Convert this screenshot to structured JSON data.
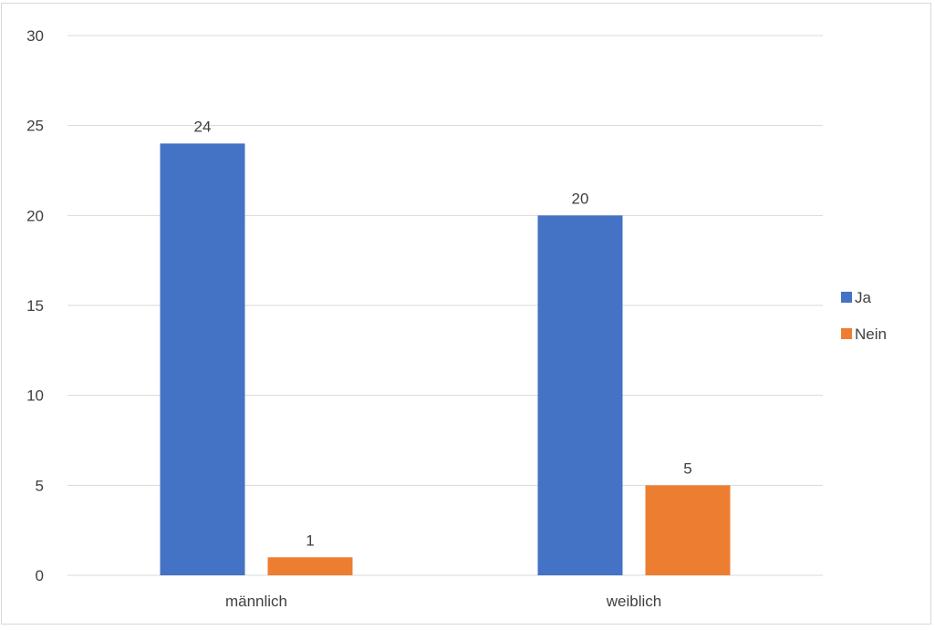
{
  "chart_data": {
    "type": "bar",
    "title": "",
    "xlabel": "",
    "ylabel": "",
    "categories": [
      "männlich",
      "weiblich"
    ],
    "series": [
      {
        "name": "Ja",
        "values": [
          24,
          20
        ],
        "color": "#4472C4"
      },
      {
        "name": "Nein",
        "values": [
          1,
          5
        ],
        "color": "#ED7D31"
      }
    ],
    "ylim": [
      0,
      30
    ],
    "yticks": [
      "0",
      "5",
      "10",
      "15",
      "20",
      "25",
      "30"
    ],
    "grid": true,
    "gridline_color": "#d9d9d9",
    "data_labels": true,
    "legend_position": "right"
  }
}
